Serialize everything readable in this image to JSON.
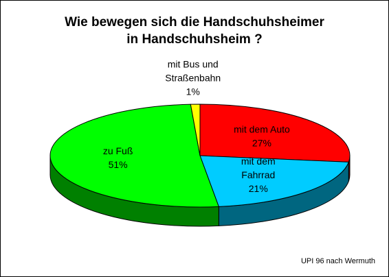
{
  "chart_data": {
    "type": "pie",
    "title": "Wie bewegen sich die Handschuhsheimer\nin Handschuhsheim ?",
    "categories": [
      "mit dem Auto",
      "mit dem\nFahrrad",
      "zu Fuß",
      "mit Bus und\nStraßenbahn"
    ],
    "values": [
      27,
      21,
      51,
      1
    ],
    "value_labels": [
      "27%",
      "21%",
      "51%",
      "1%"
    ],
    "colors": [
      "#ff0000",
      "#00ccff",
      "#00ff00",
      "#ffff00"
    ],
    "three_d": true,
    "annotation": "UPI 96 nach Wermuth"
  }
}
